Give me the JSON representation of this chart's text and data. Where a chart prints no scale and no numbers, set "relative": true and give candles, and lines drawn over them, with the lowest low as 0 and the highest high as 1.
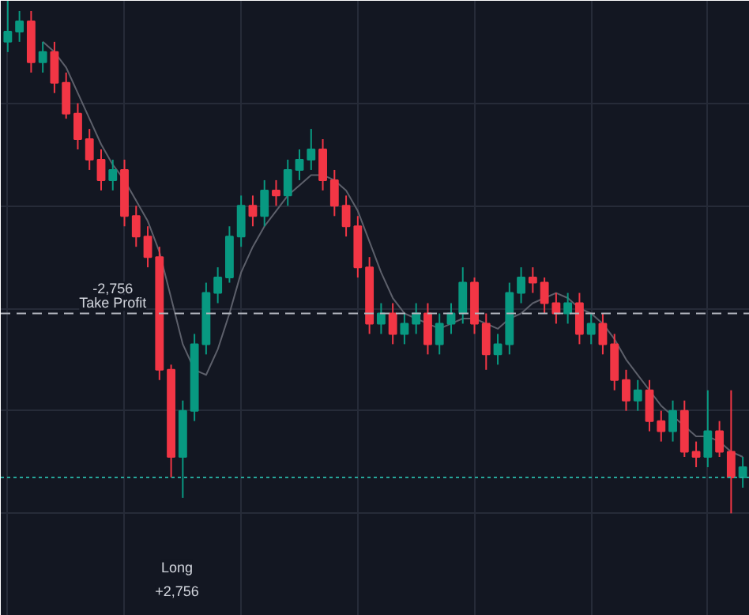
{
  "chart_data": {
    "type": "candlestick",
    "relative": true,
    "grid": true,
    "categories": [
      null,
      null,
      null,
      null,
      null,
      null,
      null,
      null,
      null,
      null,
      null,
      null,
      null,
      null,
      null,
      null,
      null,
      null,
      null,
      null,
      null,
      null,
      null,
      null,
      null,
      null,
      null,
      null,
      null,
      null,
      null,
      null,
      null,
      null,
      null,
      null,
      null,
      null,
      null,
      null,
      null,
      null,
      null,
      null,
      null,
      null,
      null,
      null,
      null,
      null,
      null,
      null,
      null,
      null,
      null,
      null,
      null,
      null,
      null,
      null,
      null,
      null,
      null,
      null
    ],
    "ohlc": [
      [
        0.92,
        1.0,
        0.9,
        0.94
      ],
      [
        0.94,
        0.98,
        0.92,
        0.96
      ],
      [
        0.96,
        0.98,
        0.86,
        0.88
      ],
      [
        0.88,
        0.92,
        0.86,
        0.9
      ],
      [
        0.9,
        0.92,
        0.82,
        0.84
      ],
      [
        0.84,
        0.86,
        0.77,
        0.78
      ],
      [
        0.78,
        0.8,
        0.71,
        0.73
      ],
      [
        0.73,
        0.75,
        0.67,
        0.69
      ],
      [
        0.69,
        0.71,
        0.63,
        0.65
      ],
      [
        0.65,
        0.69,
        0.63,
        0.67
      ],
      [
        0.67,
        0.69,
        0.56,
        0.58
      ],
      [
        0.58,
        0.6,
        0.52,
        0.54
      ],
      [
        0.54,
        0.56,
        0.48,
        0.5
      ],
      [
        0.5,
        0.52,
        0.26,
        0.28
      ],
      [
        0.28,
        0.29,
        0.07,
        0.11
      ],
      [
        0.11,
        0.22,
        0.03,
        0.2
      ],
      [
        0.2,
        0.35,
        0.18,
        0.33
      ],
      [
        0.33,
        0.45,
        0.31,
        0.43
      ],
      [
        0.43,
        0.48,
        0.41,
        0.46
      ],
      [
        0.46,
        0.56,
        0.45,
        0.54
      ],
      [
        0.54,
        0.62,
        0.52,
        0.6
      ],
      [
        0.6,
        0.62,
        0.56,
        0.58
      ],
      [
        0.58,
        0.65,
        0.56,
        0.63
      ],
      [
        0.63,
        0.65,
        0.6,
        0.62
      ],
      [
        0.62,
        0.69,
        0.6,
        0.67
      ],
      [
        0.67,
        0.71,
        0.65,
        0.69
      ],
      [
        0.69,
        0.75,
        0.67,
        0.71
      ],
      [
        0.71,
        0.73,
        0.63,
        0.65
      ],
      [
        0.65,
        0.67,
        0.58,
        0.6
      ],
      [
        0.6,
        0.62,
        0.54,
        0.56
      ],
      [
        0.56,
        0.58,
        0.46,
        0.48
      ],
      [
        0.48,
        0.5,
        0.35,
        0.37
      ],
      [
        0.37,
        0.41,
        0.35,
        0.39
      ],
      [
        0.39,
        0.41,
        0.33,
        0.35
      ],
      [
        0.35,
        0.39,
        0.33,
        0.37
      ],
      [
        0.37,
        0.41,
        0.35,
        0.39
      ],
      [
        0.39,
        0.41,
        0.31,
        0.33
      ],
      [
        0.33,
        0.39,
        0.31,
        0.37
      ],
      [
        0.37,
        0.41,
        0.35,
        0.39
      ],
      [
        0.39,
        0.48,
        0.37,
        0.45
      ],
      [
        0.45,
        0.46,
        0.35,
        0.37
      ],
      [
        0.37,
        0.39,
        0.28,
        0.31
      ],
      [
        0.31,
        0.35,
        0.29,
        0.33
      ],
      [
        0.33,
        0.45,
        0.31,
        0.43
      ],
      [
        0.43,
        0.48,
        0.41,
        0.46
      ],
      [
        0.46,
        0.48,
        0.43,
        0.45
      ],
      [
        0.45,
        0.46,
        0.39,
        0.41
      ],
      [
        0.41,
        0.43,
        0.37,
        0.39
      ],
      [
        0.39,
        0.43,
        0.37,
        0.41
      ],
      [
        0.41,
        0.43,
        0.33,
        0.35
      ],
      [
        0.35,
        0.39,
        0.33,
        0.37
      ],
      [
        0.37,
        0.39,
        0.31,
        0.33
      ],
      [
        0.33,
        0.35,
        0.24,
        0.26
      ],
      [
        0.26,
        0.28,
        0.2,
        0.22
      ],
      [
        0.22,
        0.26,
        0.2,
        0.24
      ],
      [
        0.24,
        0.26,
        0.16,
        0.18
      ],
      [
        0.18,
        0.2,
        0.14,
        0.16
      ],
      [
        0.16,
        0.22,
        0.14,
        0.2
      ],
      [
        0.2,
        0.22,
        0.11,
        0.12
      ],
      [
        0.12,
        0.14,
        0.09,
        0.11
      ],
      [
        0.11,
        0.24,
        0.09,
        0.16
      ],
      [
        0.16,
        0.18,
        0.11,
        0.12
      ],
      [
        0.12,
        0.24,
        0.0,
        0.07
      ],
      [
        0.07,
        0.11,
        0.05,
        0.09
      ]
    ],
    "series": [
      {
        "type": "line",
        "color": "#5d606b",
        "values": [
          null,
          null,
          null,
          0.92,
          0.9,
          0.87,
          0.82,
          0.77,
          0.72,
          0.68,
          0.65,
          0.61,
          0.57,
          0.51,
          0.42,
          0.33,
          0.28,
          0.27,
          0.32,
          0.39,
          0.47,
          0.52,
          0.56,
          0.59,
          0.62,
          0.64,
          0.66,
          0.66,
          0.65,
          0.63,
          0.59,
          0.53,
          0.47,
          0.42,
          0.39,
          0.38,
          0.37,
          0.36,
          0.37,
          0.38,
          0.38,
          0.37,
          0.36,
          0.38,
          0.39,
          0.41,
          0.42,
          0.43,
          0.42,
          0.4,
          0.39,
          0.37,
          0.34,
          0.3,
          0.27,
          0.24,
          0.21,
          0.19,
          0.17,
          0.15,
          0.15,
          0.14,
          0.12,
          0.11
        ]
      }
    ],
    "ref_lines": [
      {
        "axis": "y",
        "value": 0.39,
        "color": "#b2b5be",
        "line_style": "dashed"
      },
      {
        "axis": "y",
        "value": 0.07,
        "color": "#26a69a",
        "line_style": "dotted"
      }
    ],
    "annotations": [
      "-2,756",
      "Take Profit",
      "Long",
      "+2,756"
    ]
  }
}
